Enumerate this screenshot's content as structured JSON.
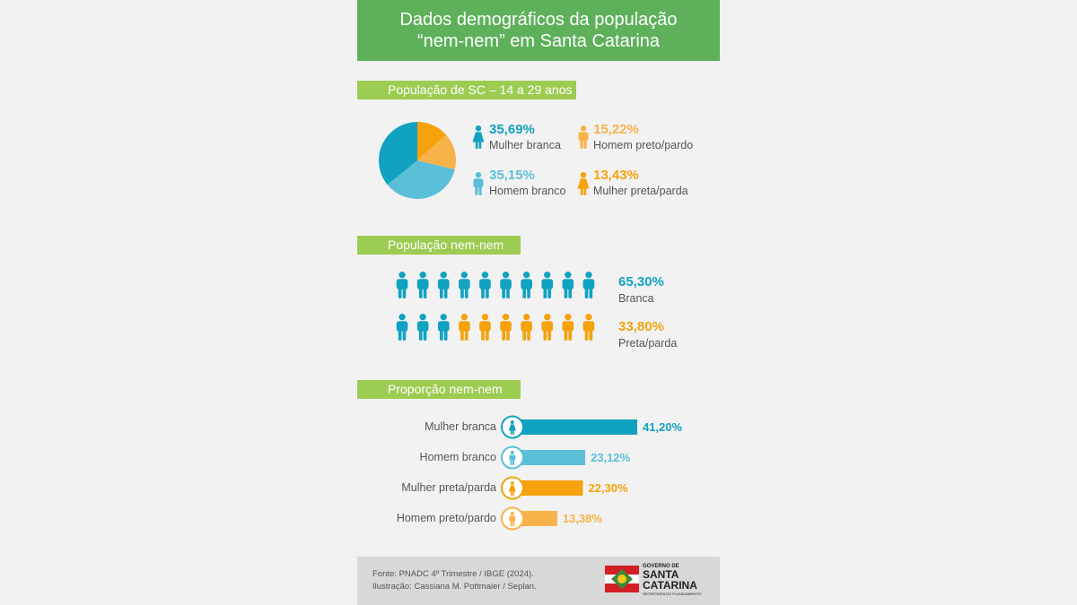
{
  "header": {
    "line1": "Dados demográficos da população",
    "line2": "“nem-nem” em Santa Catarina"
  },
  "sections": {
    "s1": "População de SC – 14 a 29 anos",
    "s2": "População nem-nem",
    "s3": "Proporção nem-nem"
  },
  "colors": {
    "blue": "#12a2c1",
    "light_blue": "#5cbfd8",
    "orange": "#f5a20d",
    "light_orange": "#f8b24a",
    "green": "#5eb15a",
    "light_green": "#9ccc52"
  },
  "chart_data": [
    {
      "type": "pie",
      "title": "População de SC – 14 a 29 anos",
      "slices": [
        {
          "label": "Mulher branca",
          "value": 35.69,
          "display": "35,69%",
          "color": "#12a2c1",
          "icon": "female-icon"
        },
        {
          "label": "Homem branco",
          "value": 35.15,
          "display": "35,15%",
          "color": "#5cbfd8",
          "icon": "male-icon"
        },
        {
          "label": "Homem preto/pardo",
          "value": 15.22,
          "display": "15,22%",
          "color": "#f8b24a",
          "icon": "male-icon"
        },
        {
          "label": "Mulher preta/parda",
          "value": 13.43,
          "display": "13,43%",
          "color": "#f5a20d",
          "icon": "female-icon"
        }
      ]
    },
    {
      "type": "pictogram",
      "title": "População nem-nem",
      "total_icons": 20,
      "groups": [
        {
          "label": "Branca",
          "value": 65.3,
          "display": "65,30%",
          "icons": 13,
          "color": "#12a2c1"
        },
        {
          "label": "Preta/parda",
          "value": 33.8,
          "display": "33,80%",
          "icons": 7,
          "color": "#f5a20d"
        }
      ]
    },
    {
      "type": "bar",
      "title": "Proporção nem-nem",
      "orientation": "horizontal",
      "categories": [
        "Mulher branca",
        "Homem branco",
        "Mulher preta/parda",
        "Homem preto/pardo"
      ],
      "values": [
        41.2,
        23.12,
        22.3,
        13.38
      ],
      "display": [
        "41,20%",
        "23,12%",
        "22,30%",
        "13,38%"
      ],
      "colors": [
        "#12a2c1",
        "#5cbfd8",
        "#f5a20d",
        "#f8b24a"
      ],
      "icons": [
        "female-icon",
        "male-icon",
        "female-icon",
        "male-icon"
      ]
    }
  ],
  "footer": {
    "source": "Fonte: PNADC 4º Trimestre / IBGE (2024).",
    "illustration": "Ilustração: Cassiana M. Pottmaier / Seplan."
  },
  "logo": {
    "line1": "GOVERNO DE",
    "line2": "SANTA",
    "line3": "CATARINA",
    "line4": "SECRETARIA DO PLANEJAMENTO"
  }
}
